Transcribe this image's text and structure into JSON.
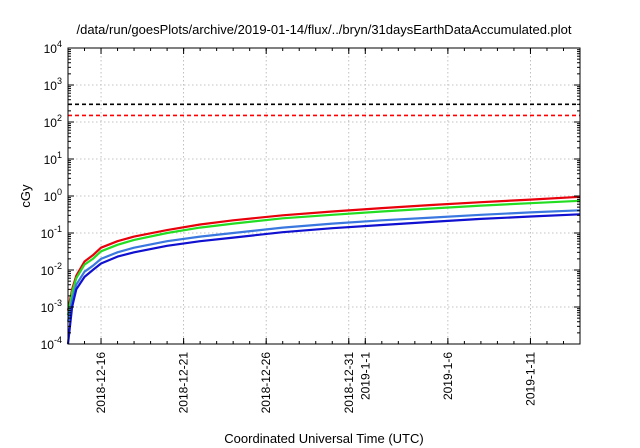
{
  "chart_data": {
    "type": "line",
    "title": "/data/run/goesPlots/archive/2019-01-14/flux/../bryn/31daysEarthDataAccumulated.plot",
    "xlabel": "Coordinated Universal Time (UTC)",
    "ylabel": "cGy",
    "yscale": "log",
    "ylim": [
      0.0001,
      10000
    ],
    "xlim": [
      "2018-12-14",
      "2019-01-14"
    ],
    "grid": true,
    "y_ticks": [
      {
        "base": "10",
        "exp": "-4",
        "value": 0.0001
      },
      {
        "base": "10",
        "exp": "-3",
        "value": 0.001
      },
      {
        "base": "10",
        "exp": "-2",
        "value": 0.01
      },
      {
        "base": "10",
        "exp": "-1",
        "value": 0.1
      },
      {
        "base": "10",
        "exp": "0",
        "value": 1
      },
      {
        "base": "10",
        "exp": "1",
        "value": 10
      },
      {
        "base": "10",
        "exp": "2",
        "value": 100
      },
      {
        "base": "10",
        "exp": "3",
        "value": 1000
      },
      {
        "base": "10",
        "exp": "4",
        "value": 10000
      }
    ],
    "x_ticks": [
      {
        "date": "2018-12-16",
        "label": "2018-12-16"
      },
      {
        "date": "2018-12-21",
        "label": "2018-12-21"
      },
      {
        "date": "2018-12-26",
        "label": "2018-12-26"
      },
      {
        "date": "2018-12-31",
        "label": "2018-12-31"
      },
      {
        "date": "2019-01-01",
        "label": "2019-1-1"
      },
      {
        "date": "2019-01-06",
        "label": "2019-1-6"
      },
      {
        "date": "2019-01-11",
        "label": "2019-1-11"
      }
    ],
    "reference_lines": [
      {
        "value": 300,
        "color": "#000000",
        "style": "dashed"
      },
      {
        "value": 150,
        "color": "#ff0000",
        "style": "dashed"
      }
    ],
    "series": [
      {
        "color": "#e8000b",
        "x": [
          "2018-12-14",
          "2018-12-14 06:00",
          "2018-12-14 12:00",
          "2018-12-15",
          "2018-12-15 12:00",
          "2018-12-16",
          "2018-12-17",
          "2018-12-18",
          "2018-12-20",
          "2018-12-22",
          "2018-12-24",
          "2018-12-27",
          "2018-12-30",
          "2019-01-02",
          "2019-01-05",
          "2019-01-08",
          "2019-01-11",
          "2019-01-14"
        ],
        "y": [
          0.0008,
          0.003,
          0.007,
          0.017,
          0.025,
          0.04,
          0.06,
          0.08,
          0.12,
          0.17,
          0.22,
          0.3,
          0.38,
          0.47,
          0.57,
          0.68,
          0.8,
          0.95
        ]
      },
      {
        "color": "#22dd22",
        "x": [
          "2018-12-14",
          "2018-12-14 06:00",
          "2018-12-14 12:00",
          "2018-12-15",
          "2018-12-15 12:00",
          "2018-12-16",
          "2018-12-17",
          "2018-12-18",
          "2018-12-20",
          "2018-12-22",
          "2018-12-24",
          "2018-12-27",
          "2018-12-30",
          "2019-01-02",
          "2019-01-05",
          "2019-01-08",
          "2019-01-11",
          "2019-01-14"
        ],
        "y": [
          0.0006,
          0.0025,
          0.006,
          0.014,
          0.02,
          0.032,
          0.048,
          0.065,
          0.1,
          0.14,
          0.18,
          0.25,
          0.31,
          0.38,
          0.46,
          0.55,
          0.64,
          0.74
        ]
      },
      {
        "color": "#3a78e0",
        "x": [
          "2018-12-14",
          "2018-12-14 06:00",
          "2018-12-14 12:00",
          "2018-12-15",
          "2018-12-15 12:00",
          "2018-12-16",
          "2018-12-17",
          "2018-12-18",
          "2018-12-20",
          "2018-12-22",
          "2018-12-24",
          "2018-12-27",
          "2018-12-30",
          "2019-01-02",
          "2019-01-05",
          "2019-01-08",
          "2019-01-11",
          "2019-01-14"
        ],
        "y": [
          0.0004,
          0.0015,
          0.004,
          0.009,
          0.013,
          0.02,
          0.03,
          0.04,
          0.06,
          0.08,
          0.1,
          0.14,
          0.18,
          0.22,
          0.26,
          0.31,
          0.36,
          0.41
        ]
      },
      {
        "color": "#1010d0",
        "x": [
          "2018-12-14",
          "2018-12-14 06:00",
          "2018-12-14 12:00",
          "2018-12-15",
          "2018-12-15 12:00",
          "2018-12-16",
          "2018-12-17",
          "2018-12-18",
          "2018-12-20",
          "2018-12-22",
          "2018-12-24",
          "2018-12-27",
          "2018-12-30",
          "2019-01-02",
          "2019-01-05",
          "2019-01-08",
          "2019-01-11",
          "2019-01-14"
        ],
        "y": [
          0.0001,
          0.001,
          0.003,
          0.0065,
          0.01,
          0.015,
          0.023,
          0.03,
          0.045,
          0.06,
          0.075,
          0.105,
          0.135,
          0.165,
          0.2,
          0.24,
          0.28,
          0.32
        ]
      }
    ]
  }
}
